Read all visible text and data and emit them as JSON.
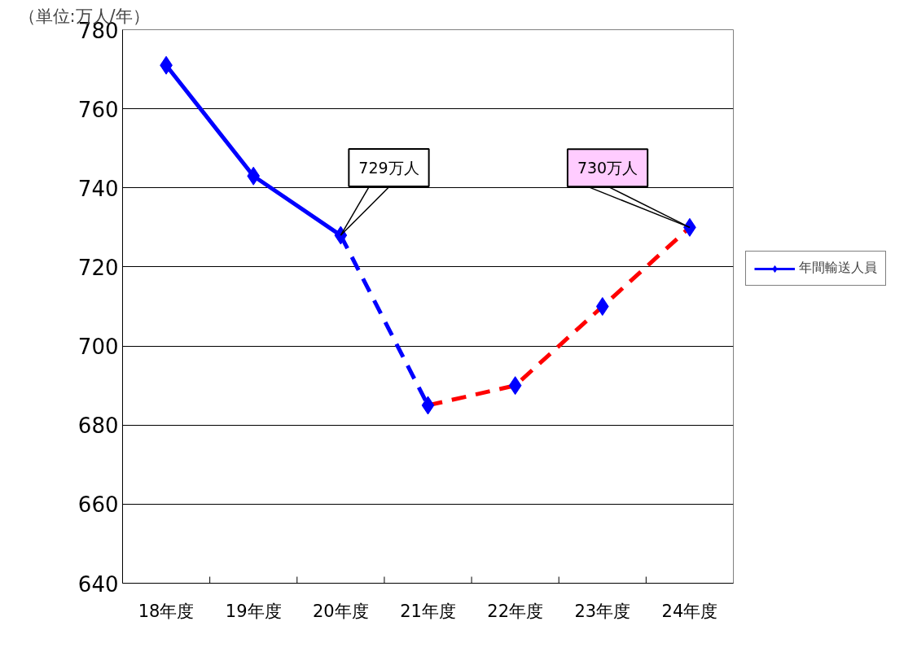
{
  "chart_data": {
    "type": "line",
    "ylabel": "（単位:万人/年）",
    "categories": [
      "18年度",
      "19年度",
      "20年度",
      "21年度",
      "22年度",
      "23年度",
      "24年度"
    ],
    "series": [
      {
        "name": "年間輸送人員",
        "color": "#0000ff",
        "values": [
          771,
          743,
          728,
          null,
          null,
          null,
          null
        ],
        "line_style": "solid",
        "marker": "diamond"
      },
      {
        "color": "#0000ff",
        "values": [
          null,
          null,
          728,
          685,
          null,
          null,
          null
        ],
        "line_style": "dashed"
      },
      {
        "color": "#ff0000",
        "values": [
          null,
          null,
          null,
          685,
          690,
          710,
          730
        ],
        "line_style": "dashed"
      },
      {
        "type": "scatter",
        "color": "#0000ff",
        "values": [
          null,
          null,
          null,
          685,
          690,
          710,
          730
        ],
        "marker": "diamond"
      }
    ],
    "annotations": [
      {
        "text": "729万人",
        "x": "20年度",
        "y": 728
      },
      {
        "text": "730万人",
        "x": "24年度",
        "y": 730
      }
    ],
    "ylim": [
      640,
      780
    ],
    "yticks": [
      640,
      660,
      680,
      700,
      720,
      740,
      760,
      780
    ],
    "grid": "y",
    "legend": "right"
  }
}
